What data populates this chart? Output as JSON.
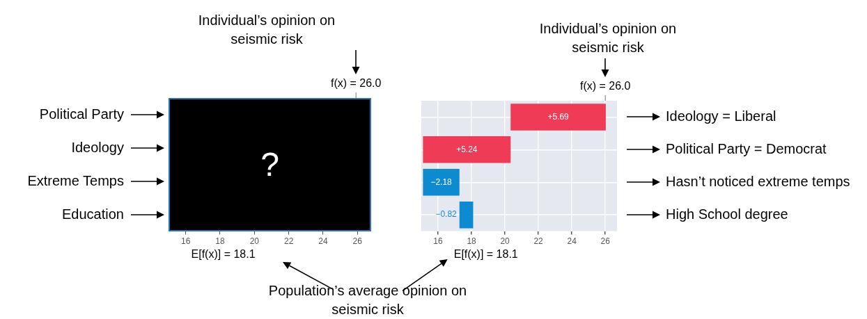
{
  "chart_data": [
    {
      "type": "bar",
      "orientation": "horizontal",
      "categories": [
        "Political Party",
        "Ideology",
        "Extreme Temps",
        "Education"
      ],
      "values": [
        null,
        null,
        null,
        null
      ],
      "xlim": [
        15,
        26.8
      ],
      "xticks": [
        16,
        18,
        20,
        22,
        24,
        26
      ],
      "annotations": [
        "Individual’s opinion on seismic risk",
        "?",
        "f(x) = 26.0",
        "E[f(x)] = 18.1"
      ]
    },
    {
      "type": "bar",
      "orientation": "horizontal",
      "categories": [
        "Ideology = Liberal",
        "Political Party = Democrat",
        "Hasn’t noticed extreme temps",
        "High School degree"
      ],
      "values": [
        5.69,
        5.24,
        -2.18,
        -0.82
      ],
      "base": [
        20.34,
        15.1,
        17.28,
        18.1
      ],
      "colors": [
        "#ef3b55",
        "#ef3b55",
        "#0d8ad0",
        "#0d8ad0"
      ],
      "value_labels": [
        "+5.69",
        "+5.24",
        "−2.18",
        "−0.82"
      ],
      "xlim": [
        15,
        26.7
      ],
      "xticks": [
        16,
        18,
        20,
        22,
        24,
        26
      ],
      "grid": true,
      "annotations": [
        "Individual’s opinion on seismic risk",
        "Population’s average opinion on seismic risk",
        {
          "text": "f(x) = 26.0",
          "x": 26
        },
        "E[f(x)] = 18.1"
      ]
    }
  ]
}
